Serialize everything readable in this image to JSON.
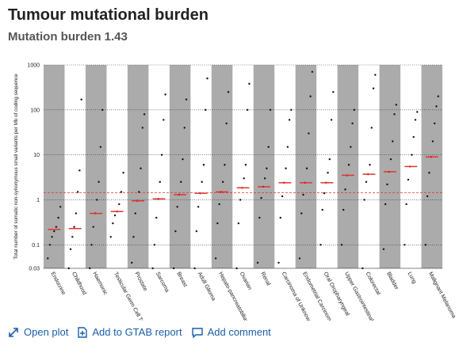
{
  "header": {
    "title": "Tumour mutational burden",
    "subtitle": "Mutation burden 1.43"
  },
  "chart_data": {
    "type": "strip",
    "y_label": "Total number of somatic non-synonymous small variants per Mb of coding sequence",
    "log_scale": true,
    "ylim": [
      0.03,
      1000
    ],
    "yticks": [
      0.03,
      0.1,
      1,
      10,
      100,
      1000
    ],
    "grid": true,
    "band_color": "#ababab",
    "point_color": "#111111",
    "median_color": "#e8322e",
    "reference_line": 1.43,
    "categories": [
      "Endocrine",
      "Childhood",
      "Haemonic",
      "Testicular Germ Cell Tumours",
      "Prostate",
      "Sarcoma",
      "Breast",
      "Adult Glioma",
      "Hepato-pancreatobiliary",
      "Ovarian",
      "Renal",
      "Carcinoma of Unknown Primary",
      "Endometrial Carcinoma",
      "Oral Oropharyngeal",
      "Upper Gastrointestinal",
      "Colorectal",
      "Bladder",
      "Lung",
      "Malignant Melanoma"
    ],
    "medians": [
      0.22,
      0.23,
      0.5,
      0.55,
      0.95,
      1.05,
      1.3,
      1.4,
      1.5,
      1.85,
      1.95,
      2.4,
      2.4,
      2.4,
      3.5,
      3.7,
      4.2,
      5.5,
      9
    ],
    "points": [
      [
        0.05,
        0.1,
        0.15,
        0.2,
        0.25,
        0.4,
        0.7
      ],
      [
        0.03,
        0.08,
        0.15,
        0.25,
        0.5,
        1.5,
        4.5,
        170
      ],
      [
        0.03,
        0.1,
        0.25,
        0.5,
        1,
        2.5,
        15,
        100
      ],
      [
        0.15,
        0.3,
        0.45,
        0.55,
        0.8,
        1.5,
        4
      ],
      [
        0.04,
        0.15,
        0.5,
        0.95,
        1.5,
        5,
        40,
        80
      ],
      [
        0.03,
        0.1,
        0.4,
        1.05,
        2.5,
        10,
        60,
        220
      ],
      [
        0.03,
        0.2,
        0.7,
        1.3,
        2.5,
        8,
        40,
        170
      ],
      [
        0.03,
        0.2,
        0.7,
        1.4,
        2.5,
        6,
        100,
        500
      ],
      [
        0.05,
        0.3,
        0.8,
        1.5,
        2.5,
        6,
        50,
        250
      ],
      [
        0.03,
        0.3,
        1,
        1.85,
        3,
        6,
        100,
        380
      ],
      [
        0.04,
        0.4,
        1.1,
        1.95,
        3,
        5,
        15,
        100
      ],
      [
        0.04,
        0.4,
        1.2,
        2.4,
        5,
        15,
        60,
        100
      ],
      [
        0.05,
        0.5,
        1.3,
        2.4,
        5,
        30,
        200,
        700
      ],
      [
        0.1,
        0.6,
        1.4,
        2.4,
        4,
        8,
        60,
        250
      ],
      [
        0.1,
        0.6,
        1.7,
        3.5,
        6,
        15,
        50,
        100
      ],
      [
        0.03,
        1,
        2.5,
        3.7,
        6,
        40,
        300,
        600
      ],
      [
        0.08,
        0.8,
        2.2,
        4.2,
        8,
        20,
        80,
        130
      ],
      [
        0.1,
        0.8,
        2.8,
        5.5,
        10,
        25,
        60,
        90
      ],
      [
        0.1,
        1.2,
        4,
        9,
        20,
        50,
        120,
        200
      ]
    ]
  },
  "actions": [
    "Open plot",
    "Add to GTAB report",
    "Add comment"
  ]
}
